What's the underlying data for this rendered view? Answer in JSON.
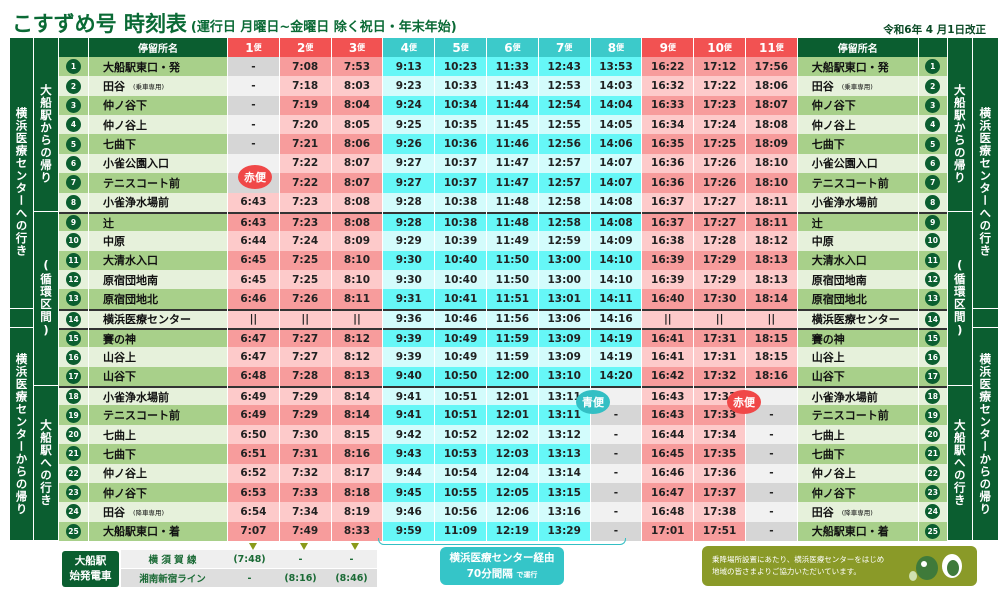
{
  "title": {
    "main": "こすずめ号 時刻表",
    "sub": "(運行日 月曜日~金曜日 除く祝日・年末年始)",
    "revision": "令和6年 4 月1日改正"
  },
  "header": {
    "stop_name": "停留所名",
    "bus_suffix": "便",
    "buses": [
      "1",
      "2",
      "3",
      "4",
      "5",
      "6",
      "7",
      "8",
      "9",
      "10",
      "11"
    ]
  },
  "colors": {
    "dark_green": "#0b5e30",
    "red_header": "#f25252",
    "cyan_header": "#3ccaca"
  },
  "bus_types": [
    "red",
    "red",
    "red",
    "cyan",
    "cyan",
    "cyan",
    "cyan",
    "cyan",
    "red",
    "red",
    "red"
  ],
  "side_labels": {
    "outer_to": "横浜医療センターへの行き",
    "outer_from": "横浜医療センターからの帰り",
    "inner_from_ofuna": "大船駅からの帰り",
    "inner_loop": "(循環区間)",
    "inner_to_ofuna": "大船駅への行き"
  },
  "stops": [
    {
      "no": "1",
      "name": "大船駅東口・発",
      "note": "",
      "times": [
        "-",
        "7:08",
        "7:53",
        "9:13",
        "10:23",
        "11:33",
        "12:43",
        "13:53",
        "16:22",
        "17:12",
        "17:56"
      ]
    },
    {
      "no": "2",
      "name": "田谷",
      "note": "(乗車専用)",
      "times": [
        "-",
        "7:18",
        "8:03",
        "9:23",
        "10:33",
        "11:43",
        "12:53",
        "14:03",
        "16:32",
        "17:22",
        "18:06"
      ]
    },
    {
      "no": "3",
      "name": "仲ノ谷下",
      "note": "",
      "times": [
        "-",
        "7:19",
        "8:04",
        "9:24",
        "10:34",
        "11:44",
        "12:54",
        "14:04",
        "16:33",
        "17:23",
        "18:07"
      ]
    },
    {
      "no": "4",
      "name": "仲ノ谷上",
      "note": "",
      "times": [
        "-",
        "7:20",
        "8:05",
        "9:25",
        "10:35",
        "11:45",
        "12:55",
        "14:05",
        "16:34",
        "17:24",
        "18:08"
      ]
    },
    {
      "no": "5",
      "name": "七曲下",
      "note": "",
      "times": [
        "-",
        "7:21",
        "8:06",
        "9:26",
        "10:36",
        "11:46",
        "12:56",
        "14:06",
        "16:35",
        "17:25",
        "18:09"
      ]
    },
    {
      "no": "6",
      "name": "小雀公園入口",
      "note": "",
      "times": [
        "",
        "7:22",
        "8:07",
        "9:27",
        "10:37",
        "11:47",
        "12:57",
        "14:07",
        "16:36",
        "17:26",
        "18:10"
      ]
    },
    {
      "no": "7",
      "name": "テニスコート前",
      "note": "",
      "times": [
        "",
        "7:22",
        "8:07",
        "9:27",
        "10:37",
        "11:47",
        "12:57",
        "14:07",
        "16:36",
        "17:26",
        "18:10"
      ]
    },
    {
      "no": "8",
      "name": "小雀浄水場前",
      "note": "",
      "times": [
        "6:43",
        "7:23",
        "8:08",
        "9:28",
        "10:38",
        "11:48",
        "12:58",
        "14:08",
        "16:37",
        "17:27",
        "18:11"
      ]
    },
    {
      "no": "9",
      "name": "辻",
      "note": "",
      "times": [
        "6:43",
        "7:23",
        "8:08",
        "9:28",
        "10:38",
        "11:48",
        "12:58",
        "14:08",
        "16:37",
        "17:27",
        "18:11"
      ]
    },
    {
      "no": "10",
      "name": "中原",
      "note": "",
      "times": [
        "6:44",
        "7:24",
        "8:09",
        "9:29",
        "10:39",
        "11:49",
        "12:59",
        "14:09",
        "16:38",
        "17:28",
        "18:12"
      ]
    },
    {
      "no": "11",
      "name": "大清水入口",
      "note": "",
      "times": [
        "6:45",
        "7:25",
        "8:10",
        "9:30",
        "10:40",
        "11:50",
        "13:00",
        "14:10",
        "16:39",
        "17:29",
        "18:13"
      ]
    },
    {
      "no": "12",
      "name": "原宿団地南",
      "note": "",
      "times": [
        "6:45",
        "7:25",
        "8:10",
        "9:30",
        "10:40",
        "11:50",
        "13:00",
        "14:10",
        "16:39",
        "17:29",
        "18:13"
      ]
    },
    {
      "no": "13",
      "name": "原宿団地北",
      "note": "",
      "times": [
        "6:46",
        "7:26",
        "8:11",
        "9:31",
        "10:41",
        "11:51",
        "13:01",
        "14:11",
        "16:40",
        "17:30",
        "18:14"
      ]
    },
    {
      "no": "14",
      "name": "横浜医療センター",
      "note": "",
      "times": [
        "||",
        "||",
        "||",
        "9:36",
        "10:46",
        "11:56",
        "13:06",
        "14:16",
        "||",
        "||",
        "||"
      ]
    },
    {
      "no": "15",
      "name": "賽の神",
      "note": "",
      "times": [
        "6:47",
        "7:27",
        "8:12",
        "9:39",
        "10:49",
        "11:59",
        "13:09",
        "14:19",
        "16:41",
        "17:31",
        "18:15"
      ]
    },
    {
      "no": "16",
      "name": "山谷上",
      "note": "",
      "times": [
        "6:47",
        "7:27",
        "8:12",
        "9:39",
        "10:49",
        "11:59",
        "13:09",
        "14:19",
        "16:41",
        "17:31",
        "18:15"
      ]
    },
    {
      "no": "17",
      "name": "山谷下",
      "note": "",
      "times": [
        "6:48",
        "7:28",
        "8:13",
        "9:40",
        "10:50",
        "12:00",
        "13:10",
        "14:20",
        "16:42",
        "17:32",
        "18:16"
      ]
    },
    {
      "no": "18",
      "name": "小雀浄水場前",
      "note": "",
      "times": [
        "6:49",
        "7:29",
        "8:14",
        "9:41",
        "10:51",
        "12:01",
        "13:11",
        "",
        "16:43",
        "17:33",
        ""
      ]
    },
    {
      "no": "19",
      "name": "テニスコート前",
      "note": "",
      "times": [
        "6:49",
        "7:29",
        "8:14",
        "9:41",
        "10:51",
        "12:01",
        "13:11",
        "-",
        "16:43",
        "17:33",
        "-"
      ]
    },
    {
      "no": "20",
      "name": "七曲上",
      "note": "",
      "times": [
        "6:50",
        "7:30",
        "8:15",
        "9:42",
        "10:52",
        "12:02",
        "13:12",
        "-",
        "16:44",
        "17:34",
        "-"
      ]
    },
    {
      "no": "21",
      "name": "七曲下",
      "note": "",
      "times": [
        "6:51",
        "7:31",
        "8:16",
        "9:43",
        "10:53",
        "12:03",
        "13:13",
        "-",
        "16:45",
        "17:35",
        "-"
      ]
    },
    {
      "no": "22",
      "name": "仲ノ谷上",
      "note": "",
      "times": [
        "6:52",
        "7:32",
        "8:17",
        "9:44",
        "10:54",
        "12:04",
        "13:14",
        "-",
        "16:46",
        "17:36",
        "-"
      ]
    },
    {
      "no": "23",
      "name": "仲ノ谷下",
      "note": "",
      "times": [
        "6:53",
        "7:33",
        "8:18",
        "9:45",
        "10:55",
        "12:05",
        "13:15",
        "-",
        "16:47",
        "17:37",
        "-"
      ]
    },
    {
      "no": "24",
      "name": "田谷",
      "note": "(降車専用)",
      "times": [
        "6:54",
        "7:34",
        "8:19",
        "9:46",
        "10:56",
        "12:06",
        "13:16",
        "-",
        "16:48",
        "17:38",
        "-"
      ]
    },
    {
      "no": "25",
      "name": "大船駅東口・着",
      "note": "",
      "times": [
        "7:07",
        "7:49",
        "8:33",
        "9:59",
        "11:09",
        "12:19",
        "13:29",
        "-",
        "17:01",
        "17:51",
        "-"
      ]
    }
  ],
  "bubbles": {
    "red1": "赤便",
    "blue": "青便",
    "red2": "赤便"
  },
  "first_trains": {
    "label_line1": "大船駅",
    "label_line2": "始発電車",
    "lines": [
      {
        "name": "横 須 賀 線",
        "times": [
          "(7:48)",
          "-",
          "-"
        ]
      },
      {
        "name": "湘南新宿ライン",
        "times": [
          "-",
          "(8:16)",
          "(8:46)"
        ]
      }
    ]
  },
  "via_note": {
    "line1": "横浜医療センター経由",
    "line2": "70分間隔",
    "suffix": "で運行"
  },
  "thanks": {
    "line1": "乗降場所設置にあたり、横浜医療センターをはじめ",
    "line2": "地域の皆さまよりご協力いただいています。"
  }
}
